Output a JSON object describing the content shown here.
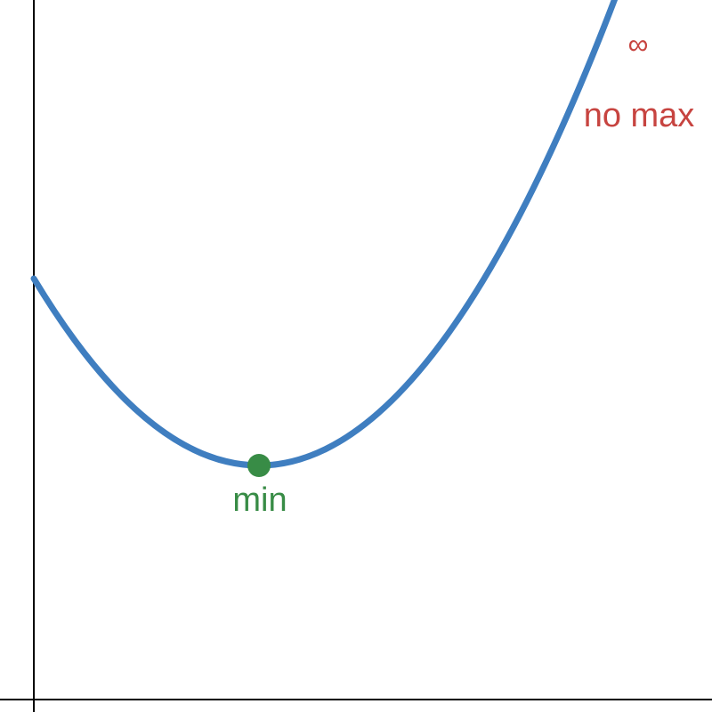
{
  "labels": {
    "infinity": "∞",
    "no_max": "no max",
    "min": "min"
  }
}
